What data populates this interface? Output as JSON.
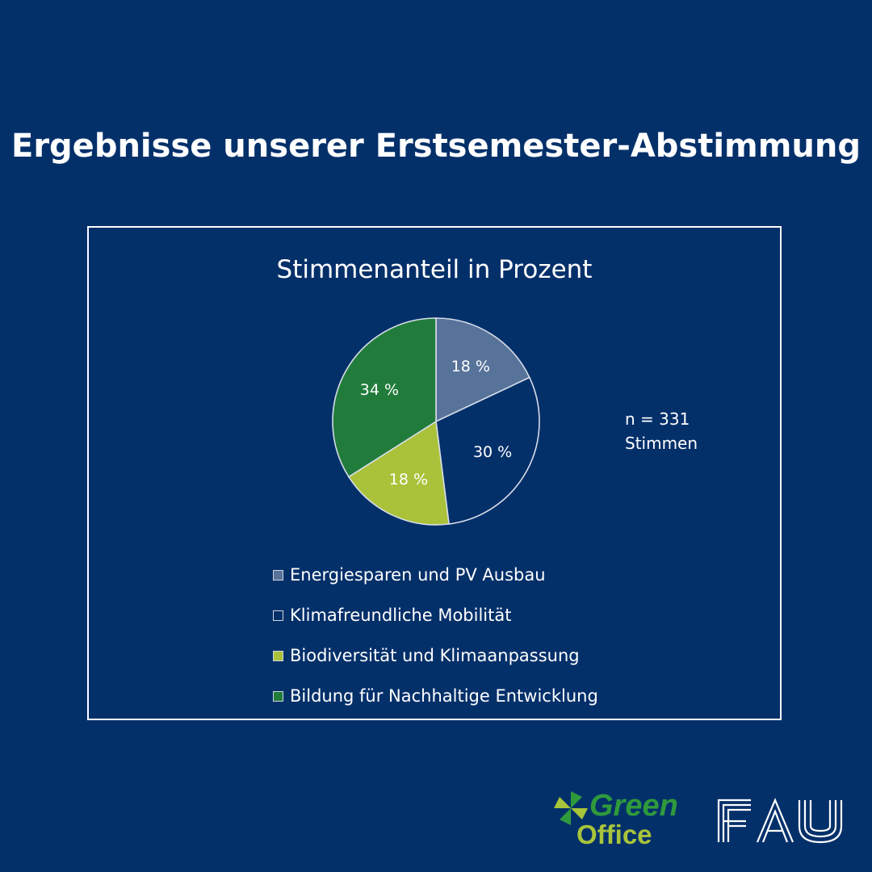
{
  "page": {
    "title": "Ergebnisse unserer Erstsemester-Abstimmung"
  },
  "chart_data": {
    "type": "pie",
    "title": "Stimmenanteil in Prozent",
    "note_line1": "n = 331",
    "note_line2": "Stimmen",
    "slices": [
      {
        "label": "Energiesparen und PV Ausbau",
        "value": 18,
        "display": "18 %",
        "color": "#57739a"
      },
      {
        "label": "Klimafreundliche Mobilität",
        "value": 30,
        "display": "30 %",
        "color": "#04306a"
      },
      {
        "label": "Biodiversität und Klimaanpassung",
        "value": 18,
        "display": "18 %",
        "color": "#a9c23a"
      },
      {
        "label": "Bildung für Nachhaltige Entwicklung",
        "value": 34,
        "display": "34 %",
        "color": "#217c3b"
      }
    ],
    "legend_position": "bottom"
  },
  "logos": {
    "green_office_line1": "Green",
    "green_office_line2": "Office",
    "fau": "FAU"
  }
}
